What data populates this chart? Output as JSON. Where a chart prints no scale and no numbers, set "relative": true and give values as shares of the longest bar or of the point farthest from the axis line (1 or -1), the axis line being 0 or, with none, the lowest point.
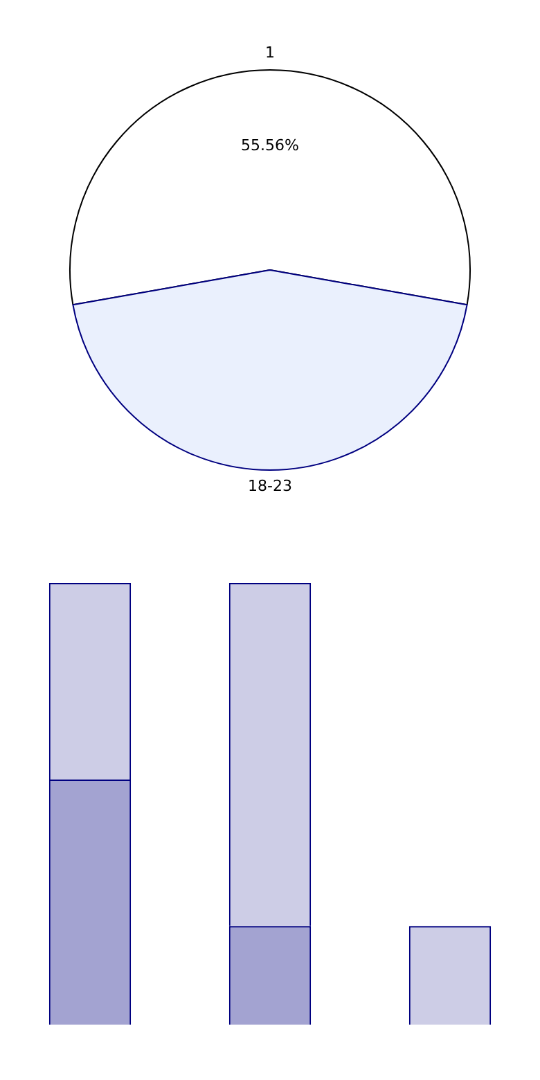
{
  "chart_data": [
    {
      "type": "pie",
      "categories": [
        "1",
        "18-23"
      ],
      "values": [
        55.56,
        44.44
      ],
      "colors": [
        "#ffffff",
        "#eaf0fd"
      ],
      "value_labels": [
        "55.56%",
        null
      ],
      "legend": false
    },
    {
      "type": "bar",
      "stacked": true,
      "relative": true,
      "categories": [
        null,
        null,
        null
      ],
      "legend": false,
      "series": [
        {
          "color": "#a3a3d1",
          "values": [
            0.555,
            0.223,
            0
          ]
        },
        {
          "color": "#cdcde6",
          "values": [
            0.445,
            0.777,
            0.223
          ]
        }
      ]
    }
  ]
}
